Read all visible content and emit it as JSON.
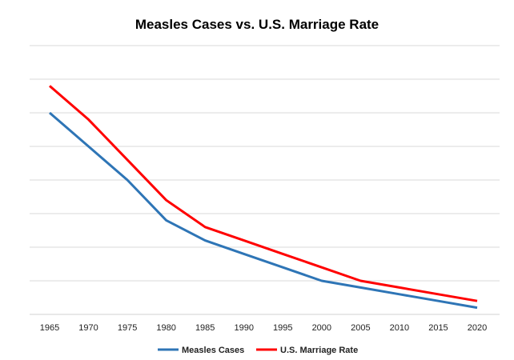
{
  "chart_data": {
    "type": "line",
    "title": "Measles Cases vs. U.S. Marriage Rate",
    "xlabel": "",
    "ylabel": "",
    "x": [
      1965,
      1970,
      1975,
      1980,
      1985,
      1990,
      1995,
      2000,
      2005,
      2010,
      2015,
      2020
    ],
    "ylim": [
      0,
      8
    ],
    "y_ticks_labeled": false,
    "grid": true,
    "legend_position": "bottom",
    "series": [
      {
        "name": "Measles Cases",
        "color": "#2e75b6",
        "values": [
          6.0,
          5.0,
          4.0,
          2.8,
          2.2,
          1.8,
          1.4,
          1.0,
          0.8,
          0.6,
          0.4,
          0.2
        ]
      },
      {
        "name": "U.S. Marriage Rate",
        "color": "#ff0000",
        "values": [
          6.8,
          5.8,
          4.6,
          3.4,
          2.6,
          2.2,
          1.8,
          1.4,
          1.0,
          0.8,
          0.6,
          0.4
        ]
      }
    ]
  }
}
